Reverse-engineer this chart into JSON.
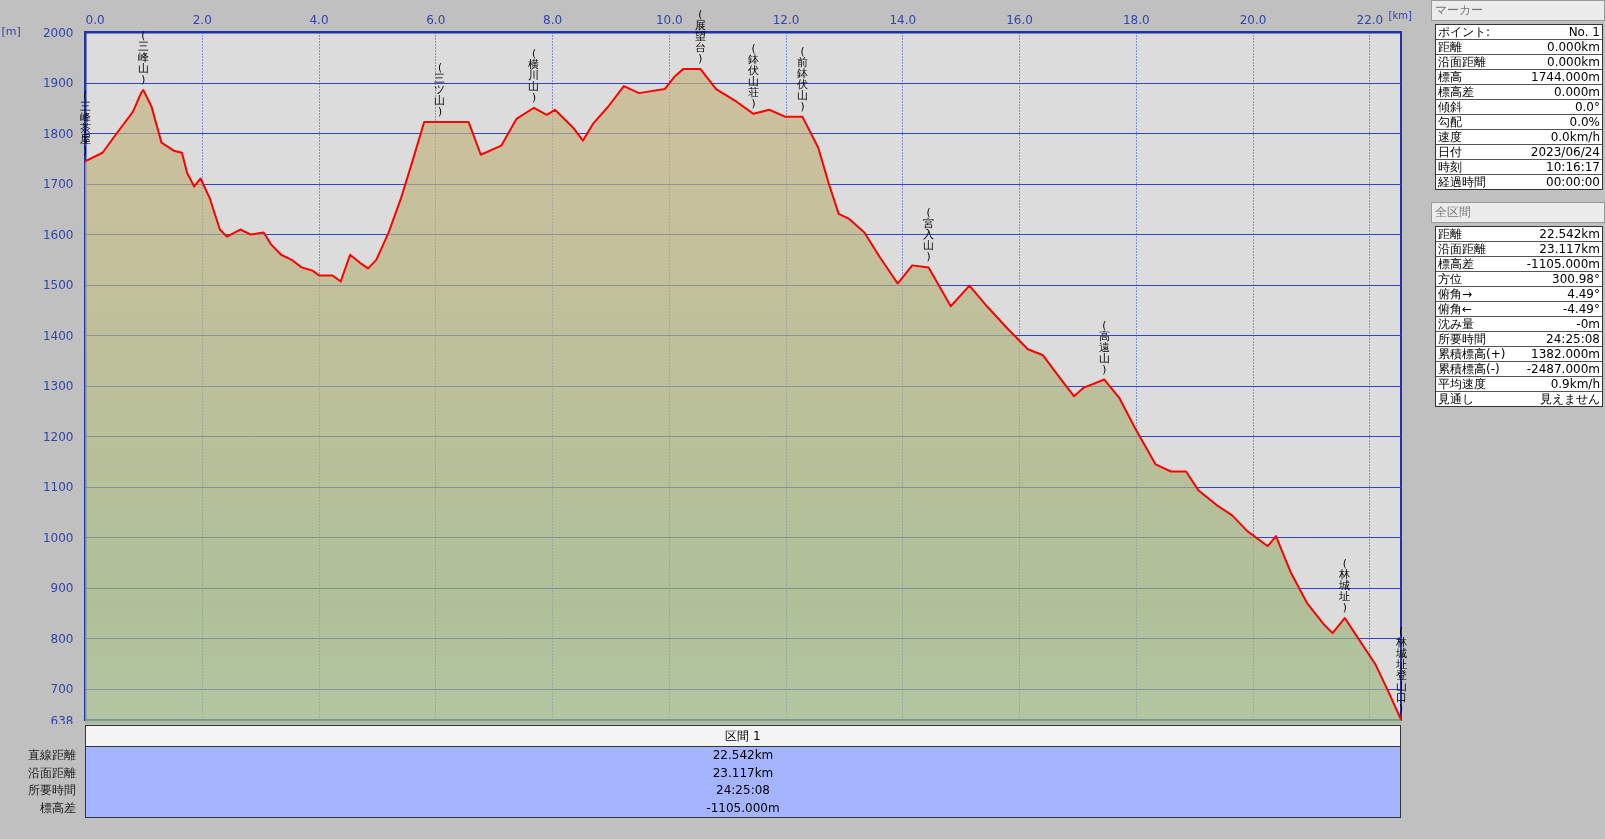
{
  "chart_data": [
    {
      "type": "area",
      "xlabel": "[km]",
      "ylabel": "[m]",
      "xlim": [
        0,
        22.542
      ],
      "ylim": [
        638,
        2000
      ],
      "xticks": [
        {
          "value": 0,
          "label": "0.0"
        },
        {
          "value": 2,
          "label": "2.0"
        },
        {
          "value": 4,
          "label": "4.0"
        },
        {
          "value": 6,
          "label": "6.0"
        },
        {
          "value": 8,
          "label": "8.0"
        },
        {
          "value": 10,
          "label": "10.0"
        },
        {
          "value": 12,
          "label": "12.0"
        },
        {
          "value": 14,
          "label": "14.0"
        },
        {
          "value": 16,
          "label": "16.0"
        },
        {
          "value": 18,
          "label": "18.0"
        },
        {
          "value": 20,
          "label": "20.0"
        },
        {
          "value": 22,
          "label": "22.0"
        }
      ],
      "yticks": [
        638,
        700,
        800,
        900,
        1000,
        1100,
        1200,
        1300,
        1400,
        1500,
        1600,
        1700,
        1800,
        1900,
        2000
      ],
      "grid": true,
      "x": [
        0,
        0.3,
        0.56,
        0.82,
        0.96,
        1.0,
        1.14,
        1.31,
        1.52,
        1.66,
        1.75,
        1.87,
        1.98,
        2.14,
        2.31,
        2.43,
        2.66,
        2.84,
        3.06,
        3.19,
        3.36,
        3.54,
        3.71,
        3.89,
        4.01,
        4.24,
        4.38,
        4.54,
        4.71,
        4.85,
        4.99,
        5.2,
        5.41,
        5.6,
        5.81,
        6.08,
        6.57,
        6.78,
        7.13,
        7.39,
        7.69,
        7.91,
        8.05,
        8.35,
        8.53,
        8.7,
        8.96,
        9.23,
        9.49,
        9.93,
        10.11,
        10.25,
        10.54,
        10.81,
        11.16,
        11.45,
        11.72,
        12.0,
        12.29,
        12.56,
        12.74,
        12.91,
        13.09,
        13.35,
        13.61,
        13.92,
        14.17,
        14.45,
        14.83,
        15.15,
        15.45,
        15.8,
        16.15,
        16.41,
        16.76,
        16.94,
        17.11,
        17.46,
        17.72,
        17.99,
        18.34,
        18.6,
        18.86,
        19.07,
        19.39,
        19.65,
        19.91,
        20.26,
        20.4,
        20.65,
        20.93,
        21.23,
        21.37,
        21.58,
        21.75,
        22.1,
        22.31,
        22.542
      ],
      "series": [
        {
          "color": "#ff0000",
          "values": [
            1744,
            1761,
            1802,
            1842,
            1879,
            1885,
            1852,
            1781,
            1765,
            1761,
            1721,
            1694,
            1710,
            1670,
            1609,
            1595,
            1609,
            1599,
            1603,
            1579,
            1559,
            1549,
            1534,
            1528,
            1518,
            1518,
            1506,
            1559,
            1543,
            1532,
            1549,
            1603,
            1670,
            1741,
            1822,
            1822,
            1822,
            1757,
            1775,
            1828,
            1850,
            1836,
            1846,
            1812,
            1785,
            1818,
            1852,
            1893,
            1879,
            1887,
            1913,
            1927,
            1927,
            1887,
            1862,
            1838,
            1846,
            1832,
            1832,
            1771,
            1700,
            1640,
            1630,
            1603,
            1555,
            1502,
            1538,
            1534,
            1457,
            1498,
            1457,
            1413,
            1372,
            1360,
            1306,
            1279,
            1296,
            1312,
            1275,
            1215,
            1144,
            1130,
            1130,
            1093,
            1063,
            1043,
            1012,
            982,
            1002,
            931,
            870,
            826,
            810,
            840,
            810,
            749,
            698,
            639
          ]
        }
      ],
      "annotations": [
        {
          "text": "(三峰茶屋)",
          "x": 0,
          "y": 1744
        },
        {
          "text": "(三峰山)",
          "x": 1.0,
          "y": 1885
        },
        {
          "text": "(三ツ山)",
          "x": 6.08,
          "y": 1822
        },
        {
          "text": "(横川山)",
          "x": 7.69,
          "y": 1850
        },
        {
          "text": "(展望台)",
          "x": 10.54,
          "y": 1927
        },
        {
          "text": "(鉢伏山荘)",
          "x": 11.45,
          "y": 1838
        },
        {
          "text": "(前鉢伏山)",
          "x": 12.29,
          "y": 1832
        },
        {
          "text": "(宮入山)",
          "x": 14.45,
          "y": 1534
        },
        {
          "text": "(高遠山)",
          "x": 17.46,
          "y": 1312
        },
        {
          "text": "(林城址)",
          "x": 21.58,
          "y": 840
        },
        {
          "text": "(林城址登山口)",
          "x": 22.542,
          "y": 639
        }
      ]
    },
    {
      "type": "other",
      "title": "マーカー",
      "annotations": [
        "ポイント:",
        "No. 1",
        "距離",
        "0.000km",
        "沿面距離",
        "0.000km",
        "標高",
        "1744.000m",
        "標高差",
        "0.000m",
        "傾斜",
        "0.0°",
        "勾配",
        "0.0%",
        "速度",
        "0.0km/h",
        "日付",
        "2023/06/24",
        "時刻",
        "10:16:17",
        "経過時間",
        "00:00:00"
      ]
    },
    {
      "type": "other",
      "title": "全区間",
      "annotations": [
        "距離",
        "22.542km",
        "沿面距離",
        "23.117km",
        "標高差",
        "-1105.000m",
        "方位",
        "300.98°",
        "俯角→",
        "4.49°",
        "俯角←",
        "-4.49°",
        "沈み量",
        "-0m",
        "所要時間",
        "24:25:08",
        "累積標高(+)",
        "1382.000m",
        "累積標高(-)",
        "-2487.000m",
        "平均速度",
        "0.9km/h",
        "見通し",
        "見えません"
      ]
    },
    {
      "type": "other",
      "title": "区間 1",
      "annotations": [
        "直線距離",
        "22.542km",
        "沿面距離",
        "23.117km",
        "所要時間",
        "24:25:08",
        "標高差",
        "-1105.000m"
      ]
    }
  ]
}
